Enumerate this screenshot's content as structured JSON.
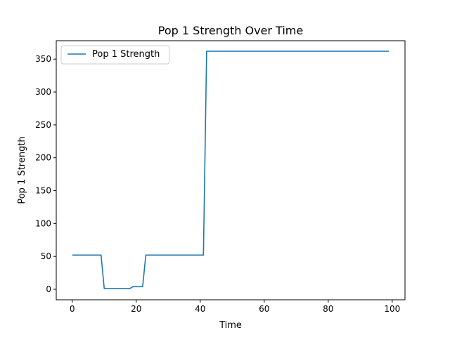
{
  "chart_data": {
    "type": "line",
    "title": "Pop 1 Strength Over Time",
    "xlabel": "Time",
    "ylabel": "Pop 1 Strength",
    "xlim": [
      -5,
      104
    ],
    "ylim": [
      -16,
      378
    ],
    "xticks": [
      0,
      20,
      40,
      60,
      80,
      100
    ],
    "yticks": [
      0,
      50,
      100,
      150,
      200,
      250,
      300,
      350
    ],
    "grid": false,
    "legend_position": "top-left",
    "series": [
      {
        "name": "Pop 1 Strength",
        "color": "#1f77b4",
        "x": [
          0,
          9,
          10,
          18,
          19,
          22,
          23,
          41,
          42,
          99
        ],
        "y": [
          52,
          52,
          1,
          1,
          4,
          4,
          52,
          52,
          362,
          362
        ]
      }
    ]
  }
}
